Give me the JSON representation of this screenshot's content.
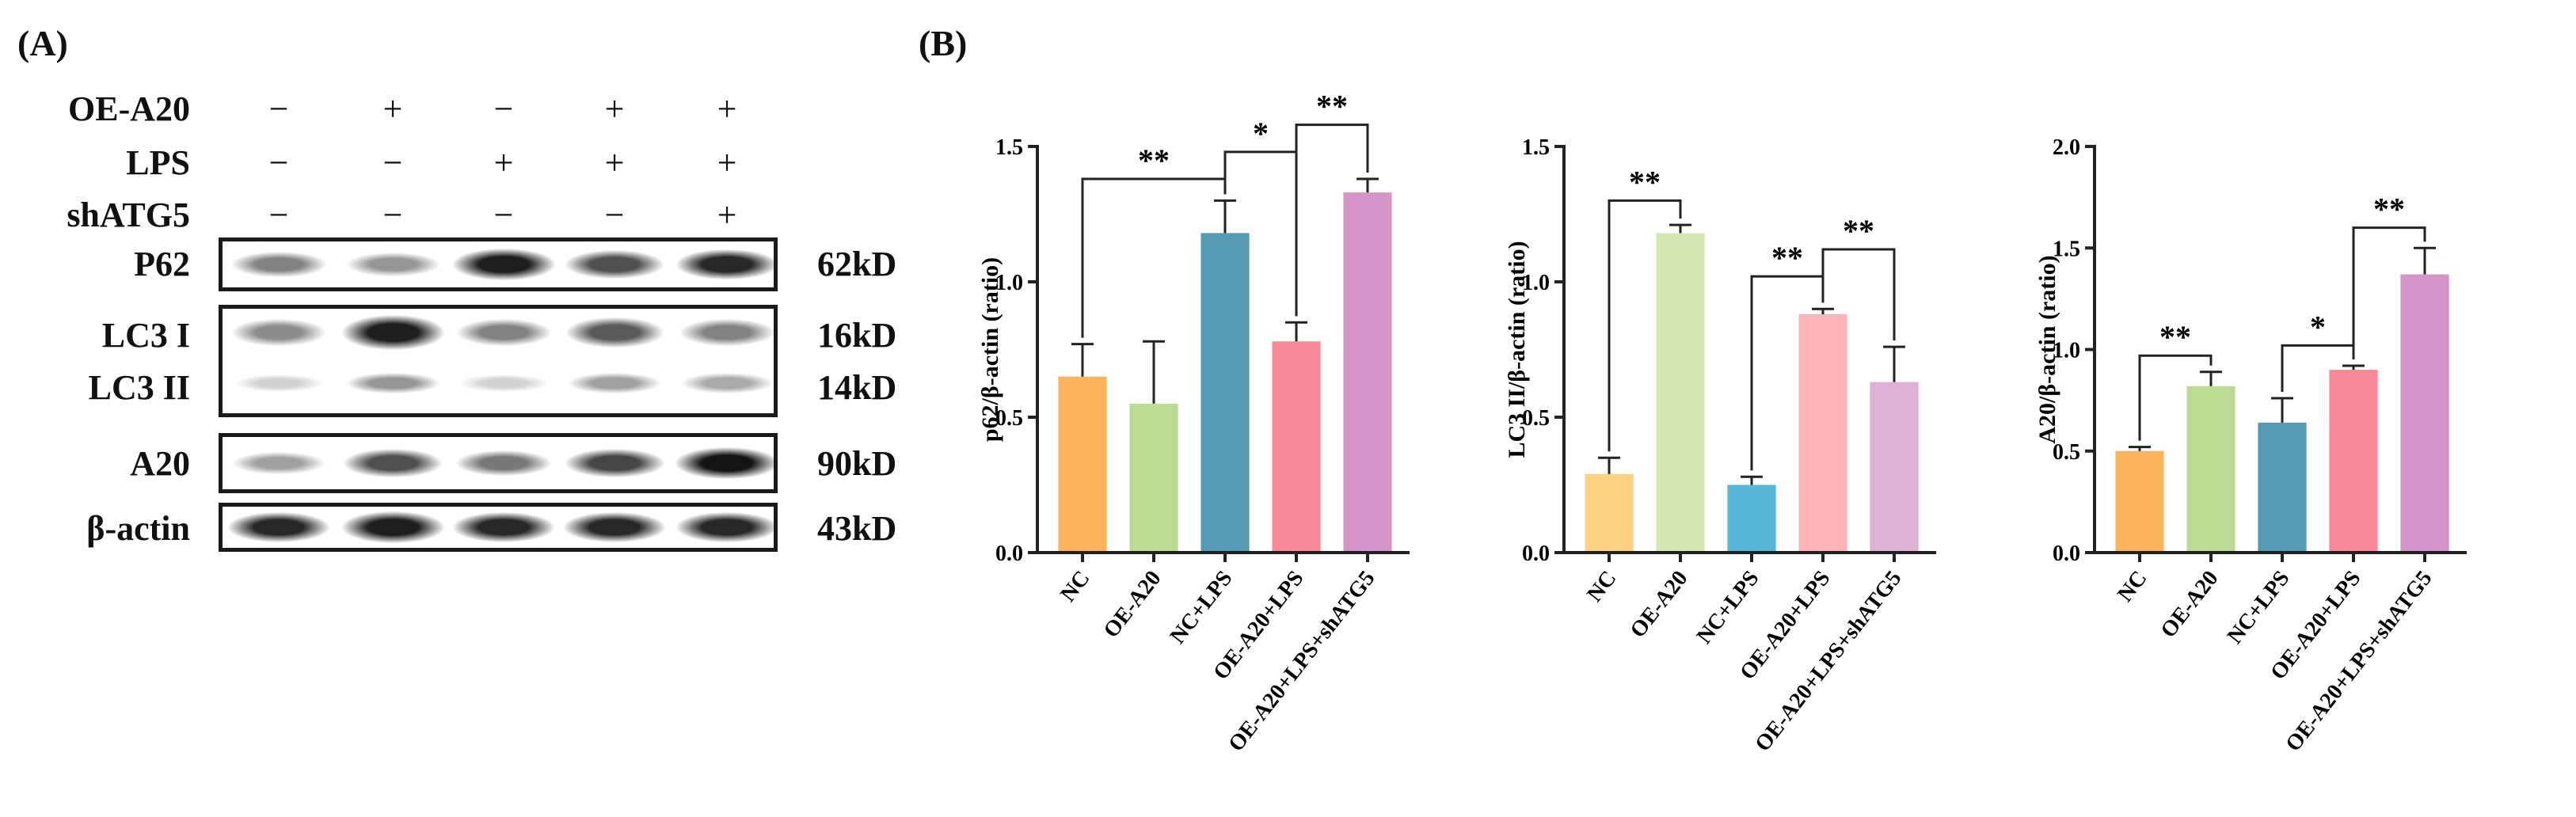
{
  "panels": {
    "a": "(A)",
    "b": "(B)"
  },
  "western_blot": {
    "conditions": [
      {
        "label": "OE-A20",
        "signs": [
          "−",
          "+",
          "−",
          "+",
          "+"
        ]
      },
      {
        "label": "LPS",
        "signs": [
          "−",
          "−",
          "+",
          "+",
          "+"
        ]
      },
      {
        "label": "shATG5",
        "signs": [
          "−",
          "−",
          "−",
          "−",
          "+"
        ]
      }
    ],
    "rows": [
      {
        "label": "P62",
        "kd": "62kD"
      },
      {
        "label": "LC3 I",
        "kd": "16kD"
      },
      {
        "label": "LC3 II",
        "kd": "14kD"
      },
      {
        "label": "A20",
        "kd": "90kD"
      },
      {
        "label": "β-actin",
        "kd": "43kD"
      }
    ],
    "band_intensity": {
      "p62": [
        0.45,
        0.35,
        0.95,
        0.7,
        0.9
      ],
      "lc3i": [
        0.4,
        0.95,
        0.45,
        0.65,
        0.45
      ],
      "lc3ii": [
        0.05,
        0.35,
        0.05,
        0.3,
        0.25
      ],
      "a20": [
        0.3,
        0.7,
        0.5,
        0.75,
        1.0
      ],
      "actin": [
        0.9,
        0.95,
        0.9,
        0.9,
        0.9
      ]
    }
  },
  "chart_data": [
    {
      "type": "bar",
      "ylabel": "p62/β-actin (ratio)",
      "categories": [
        "NC",
        "OE-A20",
        "NC+LPS",
        "OE-A20+LPS",
        "OE-A20+LPS+shATG5"
      ],
      "values": [
        0.65,
        0.55,
        1.18,
        0.78,
        1.33
      ],
      "errors": [
        0.12,
        0.23,
        0.12,
        0.07,
        0.05
      ],
      "colors": [
        "#fbb35c",
        "#b9db92",
        "#5798b3",
        "#f88a98",
        "#d595c9"
      ],
      "ylim": [
        0,
        1.5
      ],
      "yticks": [
        "0.0",
        "0.5",
        "1.0",
        "1.5"
      ],
      "brackets": [
        {
          "from": 0,
          "to": 2,
          "level": 1.38,
          "label": "**"
        },
        {
          "from": 2,
          "to": 3,
          "level": 1.48,
          "label": "*"
        },
        {
          "from": 3,
          "to": 4,
          "level": 1.58,
          "label": "**"
        }
      ]
    },
    {
      "type": "bar",
      "ylabel": "LC3 II/β-actin (ratio)",
      "categories": [
        "NC",
        "OE-A20",
        "NC+LPS",
        "OE-A20+LPS",
        "OE-A20+LPS+shATG5"
      ],
      "values": [
        0.29,
        1.18,
        0.25,
        0.88,
        0.63
      ],
      "errors": [
        0.06,
        0.03,
        0.03,
        0.02,
        0.13
      ],
      "colors": [
        "#fdd082",
        "#d3e7b5",
        "#58b6db",
        "#fcb3b5",
        "#ddb1d6"
      ],
      "ylim": [
        0,
        1.5
      ],
      "yticks": [
        "0.0",
        "0.5",
        "1.0",
        "1.5"
      ],
      "brackets": [
        {
          "from": 0,
          "to": 1,
          "level": 1.3,
          "label": "**"
        },
        {
          "from": 2,
          "to": 3,
          "level": 1.02,
          "label": "**"
        },
        {
          "from": 3,
          "to": 4,
          "level": 1.12,
          "label": "**"
        }
      ]
    },
    {
      "type": "bar",
      "ylabel": "A20/β-actin (ratio)",
      "categories": [
        "NC",
        "OE-A20",
        "NC+LPS",
        "OE-A20+LPS",
        "OE-A20+LPS+shATG5"
      ],
      "values": [
        0.5,
        0.82,
        0.64,
        0.9,
        1.37
      ],
      "errors": [
        0.02,
        0.07,
        0.12,
        0.02,
        0.13
      ],
      "colors": [
        "#fbb35c",
        "#b9db92",
        "#5798b3",
        "#f88a98",
        "#d595c9"
      ],
      "ylim": [
        0,
        2.0
      ],
      "yticks": [
        "0.0",
        "0.5",
        "1.0",
        "1.5",
        "2.0"
      ],
      "brackets": [
        {
          "from": 0,
          "to": 1,
          "level": 0.97,
          "label": "**"
        },
        {
          "from": 2,
          "to": 3,
          "level": 1.02,
          "label": "*"
        },
        {
          "from": 3,
          "to": 4,
          "level": 1.6,
          "label": "**"
        }
      ]
    }
  ]
}
